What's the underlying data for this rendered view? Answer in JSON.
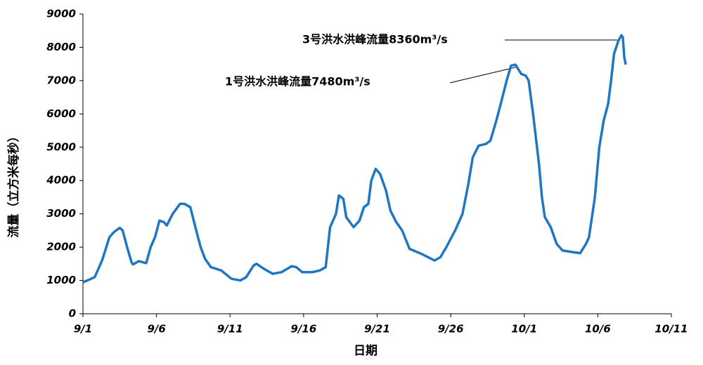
{
  "chart_data": {
    "type": "line",
    "xlabel": "日期",
    "ylabel": "流量（立方米每秒）",
    "annotations": [
      "3号洪水洪峰流量8360m³/s",
      "1号洪水洪峰流量7480m³/s"
    ],
    "xlim": [
      0,
      40
    ],
    "xticks": [
      {
        "value": 0,
        "label": "9/1"
      },
      {
        "value": 5,
        "label": "9/6"
      },
      {
        "value": 10,
        "label": "9/11"
      },
      {
        "value": 15,
        "label": "9/16"
      },
      {
        "value": 20,
        "label": "9/21"
      },
      {
        "value": 25,
        "label": "9/26"
      },
      {
        "value": 30,
        "label": "10/1"
      },
      {
        "value": 35,
        "label": "10/6"
      },
      {
        "value": 40,
        "label": "10/11"
      }
    ],
    "ylim": [
      0,
      9000
    ],
    "yticks": [
      0,
      1000,
      2000,
      3000,
      4000,
      5000,
      6000,
      7000,
      8000,
      9000
    ],
    "series": [
      {
        "name": "流量",
        "color": "#1f77c4",
        "x": [
          0,
          0.3,
          0.8,
          1.3,
          1.8,
          2.1,
          2.5,
          2.7,
          3,
          3.3,
          3.4,
          3.8,
          4.3,
          4.6,
          4.9,
          5.2,
          5.5,
          5.7,
          6.1,
          6.6,
          6.9,
          7.3,
          7.7,
          8,
          8.3,
          8.7,
          9.4,
          10.1,
          10.7,
          11.1,
          11.6,
          11.8,
          12.3,
          12.9,
          13.5,
          14.2,
          14.5,
          14.9,
          15.6,
          16.1,
          16.5,
          16.8,
          17.2,
          17.4,
          17.7,
          17.9,
          18.4,
          18.8,
          19.1,
          19.4,
          19.6,
          19.9,
          20.2,
          20.6,
          20.9,
          21.3,
          21.7,
          22.2,
          23,
          23.9,
          24.3,
          24.7,
          25.3,
          25.8,
          26.2,
          26.5,
          26.9,
          27.4,
          27.7,
          28.1,
          28.4,
          28.8,
          29.1,
          29.4,
          29.8,
          30.1,
          30.3,
          30.6,
          31,
          31.2,
          31.4,
          31.8,
          32.2,
          32.6,
          33.3,
          33.8,
          34.2,
          34.4,
          34.8,
          35.1,
          35.4,
          35.7,
          35.9,
          36.1,
          36.4,
          36.6,
          36.7,
          36.8,
          36.9
        ],
        "values": [
          950,
          1000,
          1100,
          1600,
          2300,
          2450,
          2580,
          2500,
          2000,
          1550,
          1480,
          1580,
          1520,
          2000,
          2300,
          2800,
          2750,
          2650,
          3000,
          3300,
          3300,
          3200,
          2500,
          2000,
          1650,
          1400,
          1300,
          1050,
          1000,
          1100,
          1450,
          1500,
          1350,
          1200,
          1250,
          1430,
          1400,
          1250,
          1250,
          1300,
          1400,
          2600,
          3000,
          3550,
          3450,
          2900,
          2600,
          2800,
          3200,
          3300,
          4000,
          4350,
          4200,
          3700,
          3100,
          2750,
          2500,
          1950,
          1800,
          1600,
          1700,
          2000,
          2500,
          3000,
          3900,
          4700,
          5050,
          5100,
          5200,
          5800,
          6300,
          7000,
          7450,
          7480,
          7200,
          7150,
          7000,
          6000,
          4500,
          3500,
          2900,
          2600,
          2100,
          1900,
          1850,
          1820,
          2100,
          2300,
          3500,
          5000,
          5800,
          6300,
          7000,
          7800,
          8200,
          8360,
          8300,
          7700,
          7480
        ]
      }
    ]
  }
}
